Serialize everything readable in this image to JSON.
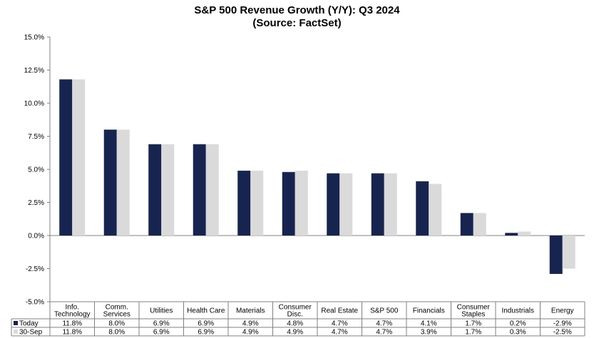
{
  "chart_data": {
    "type": "bar",
    "title": "S&P 500 Revenue Growth (Y/Y): Q3 2024",
    "subtitle": "(Source: FactSet)",
    "categories": [
      [
        "Info.",
        "Technology"
      ],
      [
        "Comm.",
        "Services"
      ],
      [
        "Utilities"
      ],
      [
        "Health Care"
      ],
      [
        "Materials"
      ],
      [
        "Consumer",
        "Disc."
      ],
      [
        "Real Estate"
      ],
      [
        "S&P 500"
      ],
      [
        "Financials"
      ],
      [
        "Consumer",
        "Staples"
      ],
      [
        "Industrials"
      ],
      [
        "Energy"
      ]
    ],
    "series": [
      {
        "name": "Today",
        "color": "#17244f",
        "values": [
          11.8,
          8.0,
          6.9,
          6.9,
          4.9,
          4.8,
          4.7,
          4.7,
          4.1,
          1.7,
          0.2,
          -2.9
        ],
        "labels": [
          "11.8%",
          "8.0%",
          "6.9%",
          "6.9%",
          "4.9%",
          "4.8%",
          "4.7%",
          "4.7%",
          "4.1%",
          "1.7%",
          "0.2%",
          "-2.9%"
        ]
      },
      {
        "name": "30-Sep",
        "color": "#dadada",
        "values": [
          11.8,
          8.0,
          6.9,
          6.9,
          4.9,
          4.9,
          4.7,
          4.7,
          3.9,
          1.7,
          0.3,
          -2.5
        ],
        "labels": [
          "11.8%",
          "8.0%",
          "6.9%",
          "6.9%",
          "4.9%",
          "4.9%",
          "4.7%",
          "4.7%",
          "3.9%",
          "1.7%",
          "0.3%",
          "-2.5%"
        ]
      }
    ],
    "y_ticks": [
      "15.0%",
      "12.5%",
      "10.0%",
      "7.5%",
      "5.0%",
      "2.5%",
      "0.0%",
      "-2.5%",
      "-5.0%"
    ],
    "ylim": [
      -5.0,
      15.0
    ],
    "y_step": 2.5,
    "grid": false,
    "legend": "data-table-below"
  }
}
